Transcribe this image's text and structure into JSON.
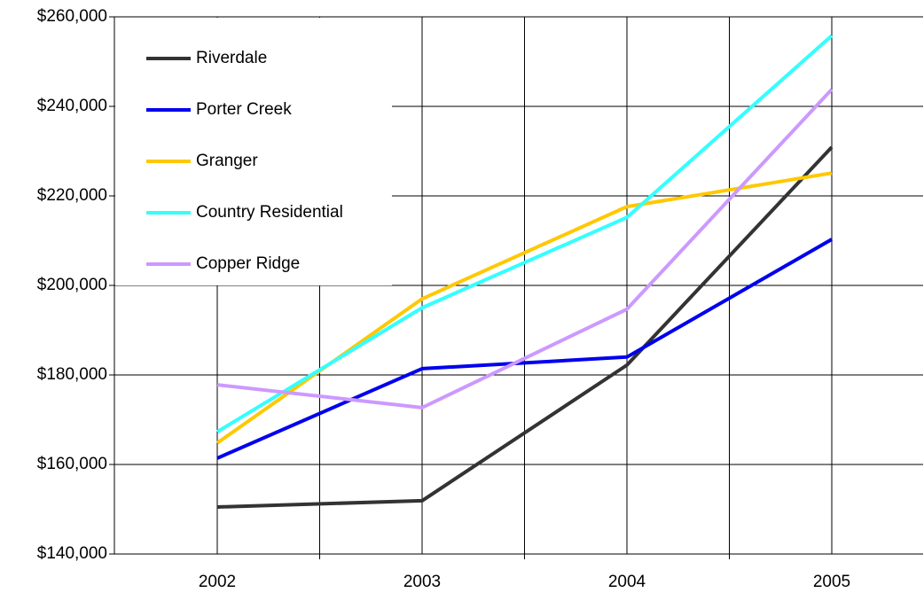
{
  "chart_data": {
    "type": "line",
    "categories": [
      "2002",
      "2003",
      "2004",
      "2005"
    ],
    "series": [
      {
        "name": "Riverdale",
        "color": "#333333",
        "values": [
          150500,
          151900,
          182200,
          230900
        ]
      },
      {
        "name": "Porter Creek",
        "color": "#0000ee",
        "values": [
          161400,
          181400,
          184000,
          210300
        ]
      },
      {
        "name": "Granger",
        "color": "#ffc800",
        "values": [
          164800,
          197000,
          217600,
          225100
        ]
      },
      {
        "name": "Country Residential",
        "color": "#33ffff",
        "values": [
          167300,
          195000,
          215200,
          255800
        ]
      },
      {
        "name": "Copper Ridge",
        "color": "#cc99ff",
        "values": [
          177800,
          172700,
          194700,
          243800
        ]
      }
    ],
    "ylim": [
      140000,
      260000
    ],
    "yticks": [
      {
        "value": 140000,
        "label": "$140,000"
      },
      {
        "value": 160000,
        "label": "$160,000"
      },
      {
        "value": 180000,
        "label": "$180,000"
      },
      {
        "value": 200000,
        "label": "$200,000"
      },
      {
        "value": 220000,
        "label": "$220,000"
      },
      {
        "value": 240000,
        "label": "$240,000"
      },
      {
        "value": 260000,
        "label": "$260,000"
      }
    ],
    "grid": true,
    "legend": "upper-left"
  }
}
